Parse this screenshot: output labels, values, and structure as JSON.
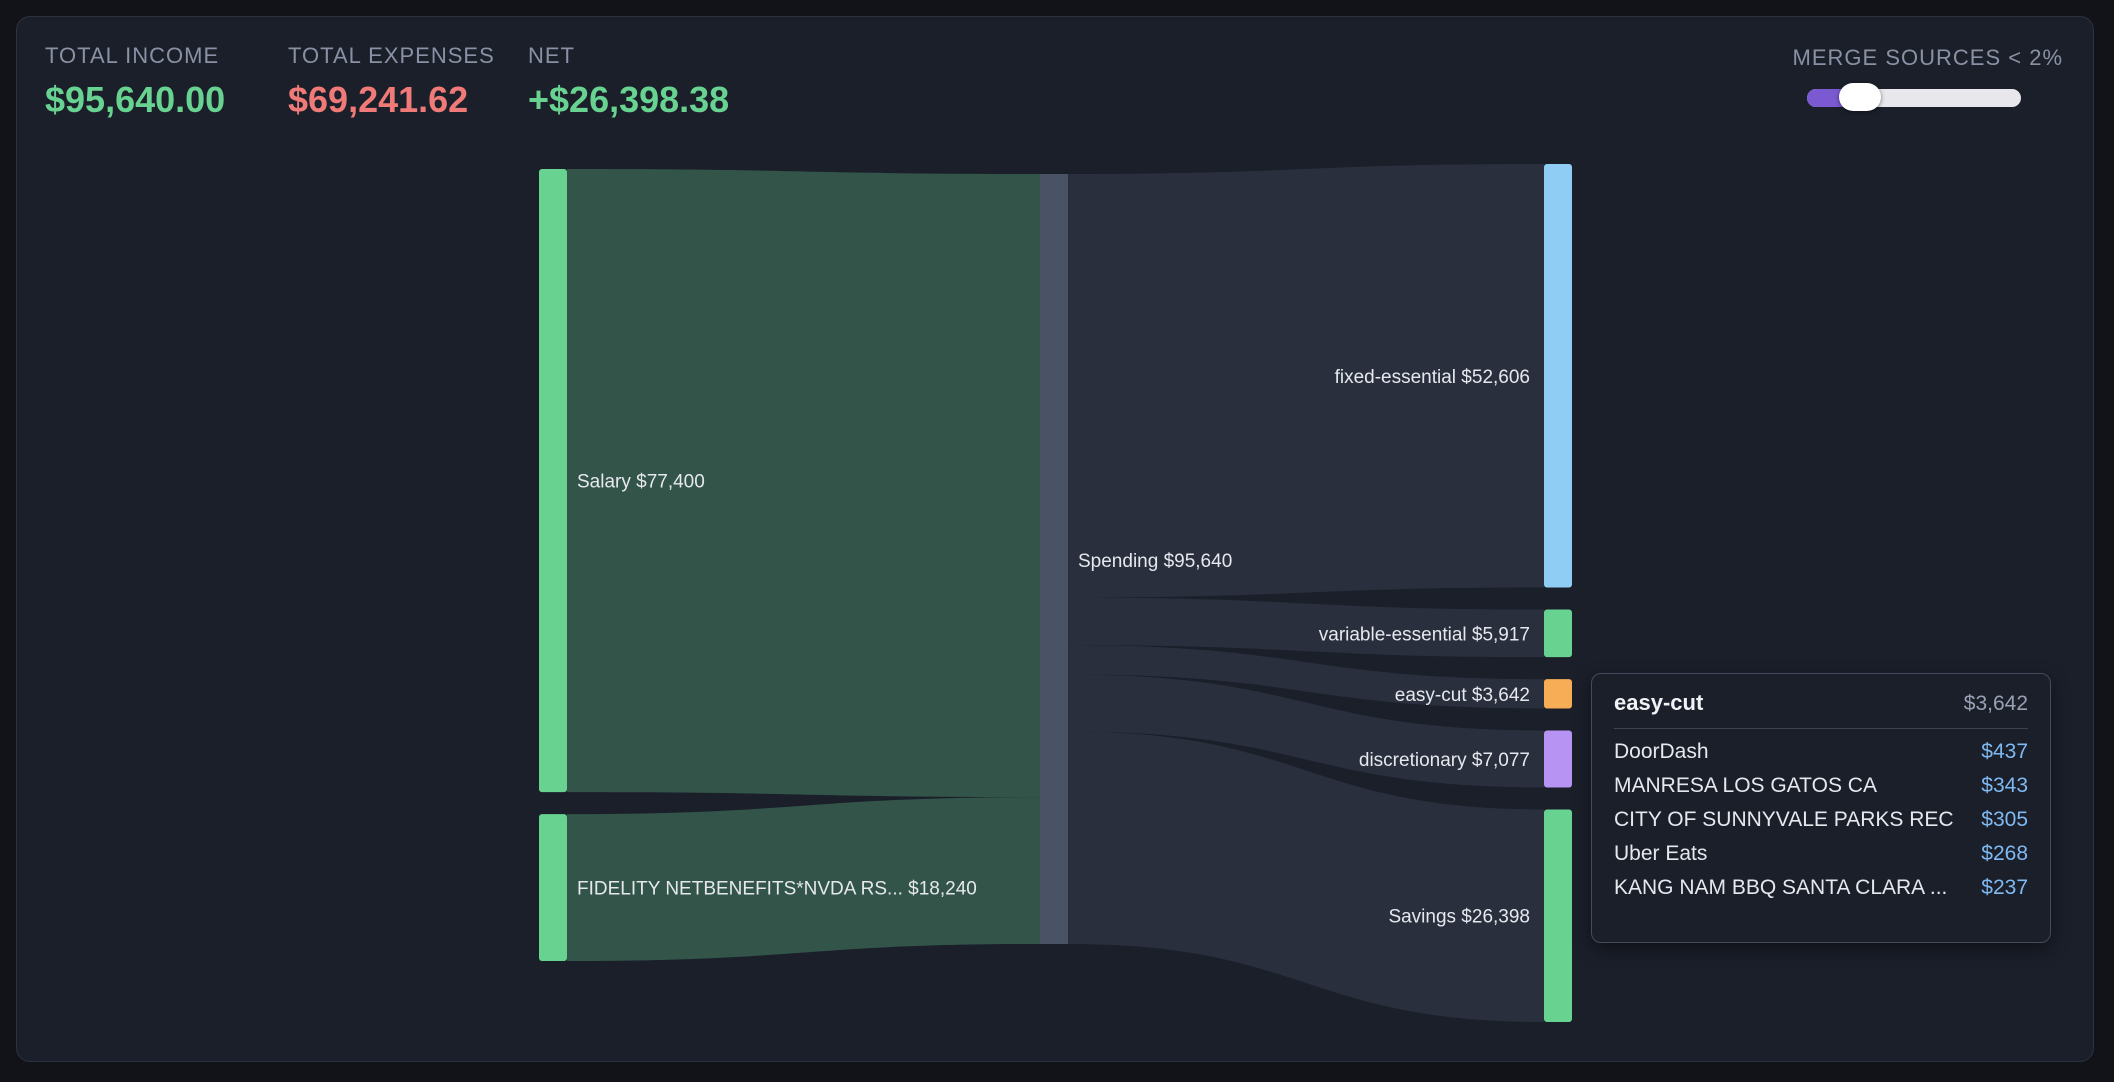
{
  "summary": {
    "income_label": "TOTAL INCOME",
    "income_value": "$95,640.00",
    "expenses_label": "TOTAL EXPENSES",
    "expenses_value": "$69,241.62",
    "net_label": "NET",
    "net_value": "+$26,398.38"
  },
  "merge_control": {
    "label": "MERGE SOURCES < 2%",
    "threshold_percent": 2
  },
  "colors": {
    "income": "#68d391",
    "expenses": "#f07a78",
    "net": "#68d391",
    "fixed_essential": "#90cdf4",
    "variable_essential": "#68d391",
    "easy_cut": "#f6ad55",
    "discretionary": "#b794f4",
    "savings": "#68d391",
    "spending_node": "#4a5266",
    "income_link": "#34574b",
    "spend_link": "#2a303e"
  },
  "sankey": {
    "sources": [
      {
        "id": "salary",
        "label": "Salary $77,400",
        "value": 77400
      },
      {
        "id": "fidelity",
        "label": "FIDELITY NETBENEFITS*NVDA RS... $18,240",
        "value": 18240
      }
    ],
    "hub": {
      "id": "spending",
      "label": "Spending $95,640",
      "value": 95640
    },
    "targets": [
      {
        "id": "fixed_essential",
        "label": "fixed-essential $52,606",
        "value": 52606
      },
      {
        "id": "variable_essential",
        "label": "variable-essential $5,917",
        "value": 5917
      },
      {
        "id": "easy_cut",
        "label": "easy-cut $3,642",
        "value": 3642
      },
      {
        "id": "discretionary",
        "label": "discretionary $7,077",
        "value": 7077
      },
      {
        "id": "savings",
        "label": "Savings $26,398",
        "value": 26398
      }
    ]
  },
  "tooltip": {
    "title": "easy-cut",
    "total": "$3,642",
    "rows": [
      {
        "name": "DoorDash",
        "amount": "$437"
      },
      {
        "name": "MANRESA LOS GATOS CA",
        "amount": "$343"
      },
      {
        "name": "CITY OF SUNNYVALE PARKS REC",
        "amount": "$305"
      },
      {
        "name": "Uber Eats",
        "amount": "$268"
      },
      {
        "name": "KANG NAM BBQ SANTA CLARA ...",
        "amount": "$237"
      }
    ]
  }
}
